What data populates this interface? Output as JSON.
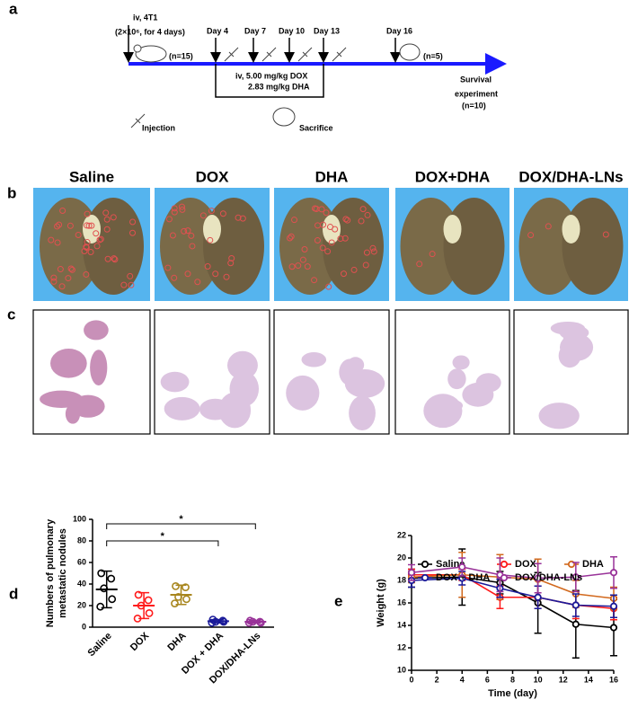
{
  "panel_labels": [
    "a",
    "b",
    "c",
    "d",
    "e"
  ],
  "timeline": {
    "inoculation": "iv, 4T1",
    "cells": "(2×10⁶, for 4 days)",
    "n_start": "(n=15)",
    "days": [
      "Day 4",
      "Day 7",
      "Day 10",
      "Day 13",
      "Day 16"
    ],
    "n_end": "(n=5)",
    "dose": [
      "iv, 5.00 mg/kg DOX",
      "2.83 mg/kg DHA"
    ],
    "survival": [
      "Survival",
      "experiment",
      "(n=10)"
    ],
    "injection": "Injection",
    "sacrifice": "Sacrifice"
  },
  "photos": {
    "labels": [
      "Saline",
      "DOX",
      "DHA",
      "DOX+DHA",
      "DOX/DHA-LNs"
    ]
  },
  "chart_data": [
    {
      "type": "dot_plot",
      "ylabel": [
        "Numbers of pulmonary",
        "metastatic nodules"
      ],
      "categories": [
        "Saline",
        "DOX",
        "DHA",
        "DOX + DHA",
        "DOX/DHA-LNs"
      ],
      "groups": [
        {
          "color": "#000000",
          "values": [
            50,
            45,
            36,
            26,
            19
          ],
          "mean": 35,
          "sd": 17
        },
        {
          "color": "#ff1a1a",
          "values": [
            30,
            25,
            20,
            13,
            8
          ],
          "mean": 20,
          "sd": 12
        },
        {
          "color": "#a8861e",
          "values": [
            38,
            37,
            28,
            26,
            22
          ],
          "mean": 30,
          "sd": 9
        },
        {
          "color": "#1a1a99",
          "values": [
            7,
            6,
            5,
            5,
            4
          ],
          "mean": 5.5,
          "sd": 1.5
        },
        {
          "color": "#993399",
          "values": [
            6,
            5,
            5,
            4,
            4
          ],
          "mean": 5,
          "sd": 1.3
        }
      ],
      "significance": [
        {
          "from": 0,
          "to": 3,
          "label": "*"
        },
        {
          "from": 0,
          "to": 4,
          "label": "*"
        }
      ],
      "ylim": [
        0,
        100
      ],
      "yticks": [
        0,
        20,
        40,
        60,
        80,
        100
      ]
    },
    {
      "type": "line",
      "xlabel": "Time (day)",
      "ylabel": "Weight (g)",
      "x": [
        0,
        4,
        7,
        10,
        13,
        16
      ],
      "series": [
        {
          "name": "Saline",
          "color": "#000000",
          "values": [
            18.2,
            18.3,
            17.8,
            16.0,
            14.1,
            13.8
          ],
          "errors": [
            0.8,
            2.5,
            1.0,
            2.7,
            3.0,
            2.5
          ]
        },
        {
          "name": "DOX",
          "color": "#ff1a1a",
          "values": [
            18.5,
            18.5,
            16.5,
            16.5,
            15.8,
            15.5
          ],
          "errors": [
            0.5,
            0.5,
            1.0,
            1.0,
            1.2,
            1.0
          ]
        },
        {
          "name": "DHA",
          "color": "#d2691e",
          "values": [
            18.3,
            18.5,
            18.3,
            18.1,
            16.8,
            16.4
          ],
          "errors": [
            0.5,
            2.0,
            2.0,
            1.8,
            1.2,
            1.0
          ]
        },
        {
          "name": "DOX + DHA",
          "color": "#1a1a99",
          "values": [
            18.0,
            18.2,
            17.3,
            16.5,
            15.8,
            15.7
          ],
          "errors": [
            0.6,
            0.6,
            0.8,
            1.0,
            1.0,
            1.0
          ]
        },
        {
          "name": "DOX/DHA-LNs",
          "color": "#993399",
          "values": [
            18.7,
            19.2,
            18.5,
            18.2,
            18.3,
            18.7
          ],
          "errors": [
            0.7,
            0.8,
            1.5,
            1.3,
            1.3,
            1.4
          ]
        }
      ],
      "xlim": [
        0,
        16
      ],
      "xticks": [
        0,
        2,
        4,
        6,
        8,
        10,
        12,
        14,
        16
      ],
      "ylim": [
        10,
        22
      ],
      "yticks": [
        10,
        12,
        14,
        16,
        18,
        20,
        22
      ],
      "legend": "top"
    }
  ]
}
